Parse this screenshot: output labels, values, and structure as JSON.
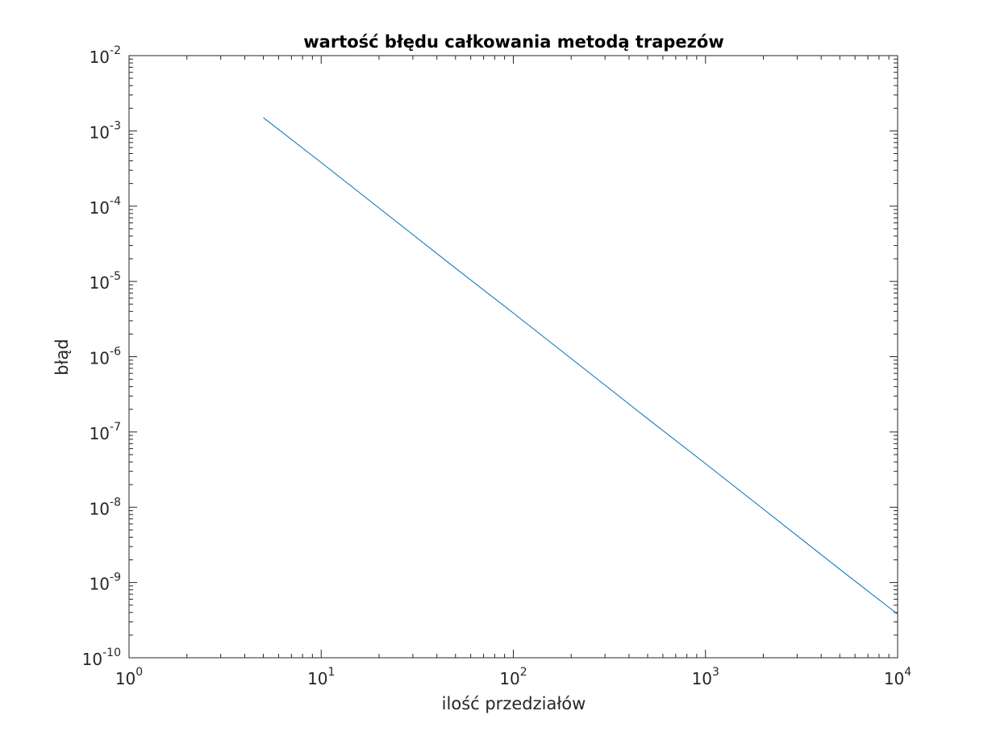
{
  "chart_data": {
    "type": "line",
    "title": "wartość błędu całkowania metodą trapezów",
    "xlabel": "ilość przedziałów",
    "ylabel": "błąd",
    "xscale": "log",
    "yscale": "log",
    "xlim": [
      1,
      10000
    ],
    "ylim": [
      1e-10,
      0.01
    ],
    "grid": false,
    "legend": "none",
    "x_ticks": [
      {
        "base": "10",
        "exp": "0"
      },
      {
        "base": "10",
        "exp": "1"
      },
      {
        "base": "10",
        "exp": "2"
      },
      {
        "base": "10",
        "exp": "3"
      },
      {
        "base": "10",
        "exp": "4"
      }
    ],
    "y_ticks": [
      {
        "base": "10",
        "exp": "-10"
      },
      {
        "base": "10",
        "exp": "-9"
      },
      {
        "base": "10",
        "exp": "-8"
      },
      {
        "base": "10",
        "exp": "-7"
      },
      {
        "base": "10",
        "exp": "-6"
      },
      {
        "base": "10",
        "exp": "-5"
      },
      {
        "base": "10",
        "exp": "-4"
      },
      {
        "base": "10",
        "exp": "-3"
      },
      {
        "base": "10",
        "exp": "-2"
      }
    ],
    "series": [
      {
        "color": "#0072bd",
        "x": [
          5,
          10,
          50,
          100,
          500,
          1000,
          5000,
          10000
        ],
        "y": [
          0.0015,
          0.00038,
          1.5e-05,
          3.8e-06,
          1.5e-07,
          3.8e-08,
          1.5e-09,
          3.8e-10
        ]
      }
    ]
  }
}
